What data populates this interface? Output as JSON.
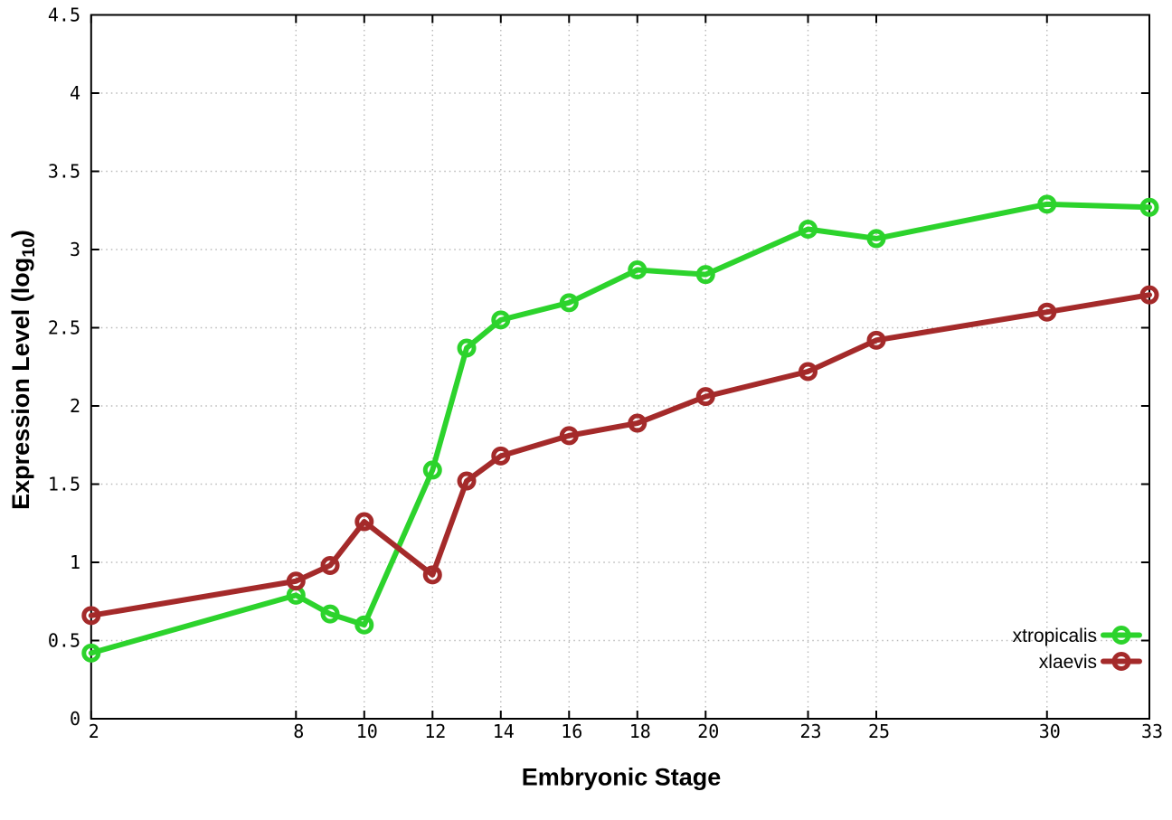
{
  "chart_data": {
    "type": "line",
    "title": "",
    "xlabel": "Embryonic Stage",
    "ylabel_main": "Expression Level (log",
    "ylabel_sub": "10",
    "ylabel_close": ")",
    "xlim": [
      2,
      33
    ],
    "ylim": [
      0,
      4.5
    ],
    "grid": true,
    "legend_position": "bottom-right-inside",
    "x_ticks": [
      2,
      8,
      10,
      12,
      14,
      16,
      18,
      20,
      23,
      25,
      30,
      33
    ],
    "y_ticks": [
      0,
      0.5,
      1,
      1.5,
      2,
      2.5,
      3,
      3.5,
      4,
      4.5
    ],
    "x": [
      2,
      8,
      9,
      10,
      12,
      13,
      14,
      16,
      18,
      20,
      23,
      25,
      30,
      33
    ],
    "series": [
      {
        "name": "xtropicalis",
        "color": "#2cd32c",
        "values": [
          0.42,
          0.79,
          0.67,
          0.6,
          1.59,
          2.37,
          2.55,
          2.66,
          2.87,
          2.84,
          3.13,
          3.07,
          3.29,
          3.27
        ]
      },
      {
        "name": "xlaevis",
        "color": "#a42a2a",
        "values": [
          0.66,
          0.88,
          0.98,
          1.26,
          0.92,
          1.52,
          1.68,
          1.81,
          1.89,
          2.06,
          2.22,
          2.42,
          2.6,
          2.71
        ]
      }
    ],
    "colors": {
      "grid": "#b9b9b9",
      "border": "#000000",
      "text": "#000000",
      "background": "#ffffff"
    }
  }
}
